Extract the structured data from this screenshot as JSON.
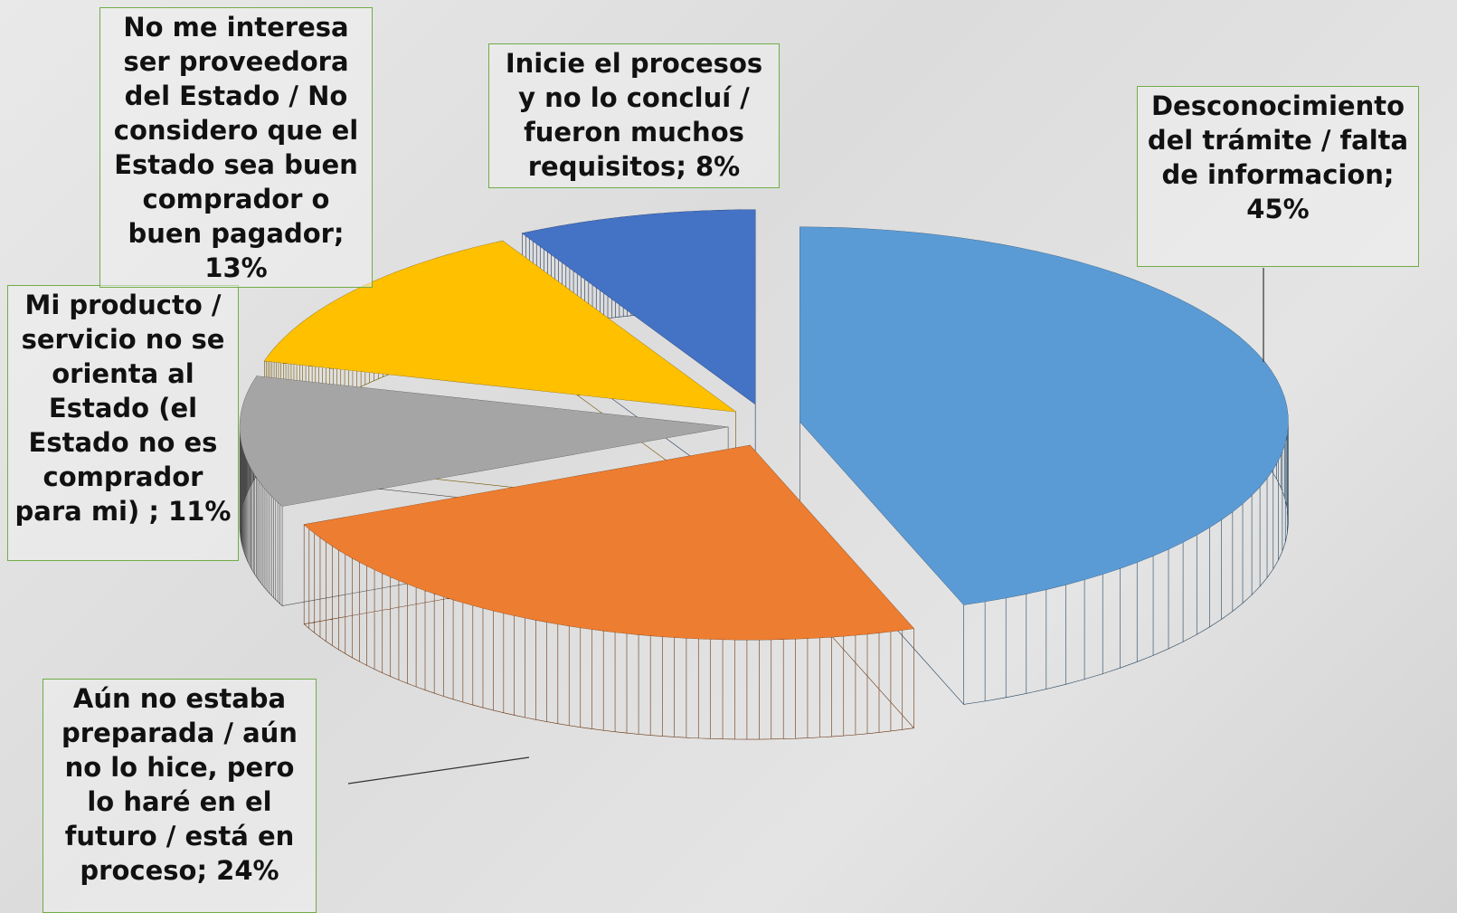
{
  "chart_data": {
    "type": "pie",
    "values": [
      45,
      24,
      11,
      13,
      8
    ],
    "value_labels": [
      "Desconocimiento del trámite / falta de informacion; 45%",
      "Aún no estaba preparada / aún no lo hice, pero lo haré en el futuro / está en proceso; 24%",
      "Mi producto / servicio no se orienta al Estado (el Estado no es comprador para mi) ; 11%",
      "No me interesa ser proveedora del Estado / No considero que el Estado sea buen comprador o buen pagador; 13%",
      "Inicie el procesos y no lo concluí / fueron muchos requisitos; 8%"
    ],
    "colors": [
      "#5b9bd5",
      "#ed7d31",
      "#a5a5a5",
      "#ffc000",
      "#4472c4"
    ]
  }
}
